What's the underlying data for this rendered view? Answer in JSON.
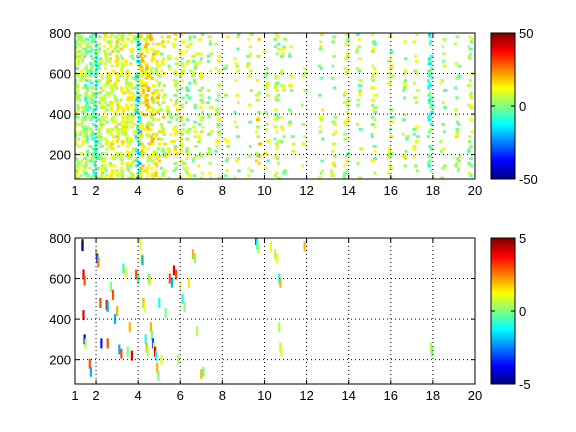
{
  "chart_data": [
    {
      "type": "heatmap",
      "title": "",
      "xlabel": "",
      "ylabel": "",
      "xlim": [
        1,
        20
      ],
      "ylim": [
        80,
        800
      ],
      "x_ticks": [
        1,
        2,
        4,
        6,
        8,
        10,
        12,
        14,
        16,
        18,
        20
      ],
      "y_ticks": [
        200,
        400,
        600,
        800
      ],
      "grid": true,
      "colormap": "jet",
      "colorbar": {
        "range": [
          -50,
          50
        ],
        "ticks": [
          -50,
          0,
          50
        ]
      },
      "bands": [
        {
          "x": 1.1,
          "density": 0.8,
          "bias": 0.05,
          "spread": 0.2
        },
        {
          "x": 1.35,
          "density": 0.7,
          "bias": 0.05,
          "spread": 0.15
        },
        {
          "x": 1.55,
          "density": 0.7,
          "bias": 0.0,
          "spread": 0.15
        },
        {
          "x": 1.8,
          "density": 0.7,
          "bias": 0.0,
          "spread": 0.15
        },
        {
          "x": 2.0,
          "density": 0.8,
          "bias": -0.05,
          "spread": 0.15
        },
        {
          "x": 2.25,
          "density": 0.75,
          "bias": 0.05,
          "spread": 0.15
        },
        {
          "x": 2.5,
          "density": 0.75,
          "bias": 0.08,
          "spread": 0.15
        },
        {
          "x": 2.75,
          "density": 0.75,
          "bias": 0.1,
          "spread": 0.15
        },
        {
          "x": 3.0,
          "density": 0.75,
          "bias": 0.1,
          "spread": 0.15
        },
        {
          "x": 3.25,
          "density": 0.75,
          "bias": 0.1,
          "spread": 0.15
        },
        {
          "x": 3.5,
          "density": 0.7,
          "bias": 0.08,
          "spread": 0.15
        },
        {
          "x": 3.75,
          "density": 0.65,
          "bias": 0.08,
          "spread": 0.15
        },
        {
          "x": 4.0,
          "density": 0.8,
          "bias": -0.1,
          "spread": 0.25
        },
        {
          "x": 4.2,
          "density": 0.75,
          "bias": 0.15,
          "spread": 0.2
        },
        {
          "x": 4.45,
          "density": 0.75,
          "bias": 0.15,
          "spread": 0.2
        },
        {
          "x": 4.7,
          "density": 0.75,
          "bias": 0.12,
          "spread": 0.2
        },
        {
          "x": 4.95,
          "density": 0.65,
          "bias": 0.1,
          "spread": 0.2
        },
        {
          "x": 5.2,
          "density": 0.55,
          "bias": 0.08,
          "spread": 0.2
        },
        {
          "x": 5.5,
          "density": 0.5,
          "bias": 0.08,
          "spread": 0.2
        },
        {
          "x": 5.8,
          "density": 0.55,
          "bias": 0.08,
          "spread": 0.2
        },
        {
          "x": 6.1,
          "density": 0.45,
          "bias": 0.08,
          "spread": 0.2
        },
        {
          "x": 6.4,
          "density": 0.4,
          "bias": 0.05,
          "spread": 0.2
        },
        {
          "x": 6.7,
          "density": 0.45,
          "bias": 0.05,
          "spread": 0.2
        },
        {
          "x": 7.0,
          "density": 0.4,
          "bias": 0.05,
          "spread": 0.2
        },
        {
          "x": 7.4,
          "density": 0.3,
          "bias": 0.05,
          "spread": 0.2
        },
        {
          "x": 7.8,
          "density": 0.25,
          "bias": 0.05,
          "spread": 0.2
        },
        {
          "x": 8.2,
          "density": 0.2,
          "bias": 0.05,
          "spread": 0.2
        },
        {
          "x": 8.7,
          "density": 0.35,
          "bias": 0.05,
          "spread": 0.2
        },
        {
          "x": 9.3,
          "density": 0.2,
          "bias": 0.05,
          "spread": 0.2
        },
        {
          "x": 9.7,
          "density": 0.3,
          "bias": 0.1,
          "spread": 0.2
        },
        {
          "x": 10.1,
          "density": 0.15,
          "bias": 0.05,
          "spread": 0.2
        },
        {
          "x": 10.6,
          "density": 0.55,
          "bias": 0.05,
          "spread": 0.2
        },
        {
          "x": 10.9,
          "density": 0.3,
          "bias": 0.05,
          "spread": 0.2
        },
        {
          "x": 11.3,
          "density": 0.2,
          "bias": 0.05,
          "spread": 0.2
        },
        {
          "x": 11.9,
          "density": 0.25,
          "bias": 0.05,
          "spread": 0.2
        },
        {
          "x": 12.7,
          "density": 0.25,
          "bias": 0.05,
          "spread": 0.2
        },
        {
          "x": 13.3,
          "density": 0.3,
          "bias": 0.05,
          "spread": 0.2
        },
        {
          "x": 13.9,
          "density": 0.5,
          "bias": 0.05,
          "spread": 0.2
        },
        {
          "x": 14.5,
          "density": 0.3,
          "bias": 0.05,
          "spread": 0.2
        },
        {
          "x": 15.2,
          "density": 0.3,
          "bias": 0.05,
          "spread": 0.2
        },
        {
          "x": 16.0,
          "density": 0.35,
          "bias": 0.05,
          "spread": 0.2
        },
        {
          "x": 16.7,
          "density": 0.3,
          "bias": 0.05,
          "spread": 0.2
        },
        {
          "x": 17.2,
          "density": 0.35,
          "bias": 0.05,
          "spread": 0.2
        },
        {
          "x": 17.9,
          "density": 0.6,
          "bias": -0.05,
          "spread": 0.2
        },
        {
          "x": 18.5,
          "density": 0.3,
          "bias": 0.05,
          "spread": 0.2
        },
        {
          "x": 19.2,
          "density": 0.35,
          "bias": 0.05,
          "spread": 0.2
        },
        {
          "x": 19.8,
          "density": 0.45,
          "bias": 0.05,
          "spread": 0.2
        }
      ]
    },
    {
      "type": "heatmap",
      "title": "",
      "xlabel": "",
      "ylabel": "",
      "xlim": [
        1,
        20
      ],
      "ylim": [
        80,
        800
      ],
      "x_ticks": [
        1,
        2,
        4,
        6,
        8,
        10,
        12,
        14,
        16,
        18,
        20
      ],
      "y_ticks": [
        200,
        400,
        600,
        800
      ],
      "grid": true,
      "colormap": "jet",
      "colorbar": {
        "range": [
          -5,
          5
        ],
        "ticks": [
          -5,
          0,
          5
        ]
      },
      "points": [
        [
          1.35,
          770,
          5
        ],
        [
          1.35,
          760,
          -5
        ],
        [
          1.4,
          620,
          4
        ],
        [
          1.45,
          590,
          3
        ],
        [
          1.4,
          420,
          4
        ],
        [
          1.45,
          300,
          -4
        ],
        [
          1.5,
          280,
          0.5
        ],
        [
          1.7,
          180,
          3
        ],
        [
          1.75,
          140,
          -2
        ],
        [
          2.0,
          720,
          2
        ],
        [
          2.05,
          700,
          -3
        ],
        [
          2.1,
          680,
          2.5
        ],
        [
          2.2,
          480,
          3
        ],
        [
          2.25,
          280,
          -3.5
        ],
        [
          2.5,
          470,
          4
        ],
        [
          2.55,
          460,
          -2
        ],
        [
          2.55,
          280,
          3
        ],
        [
          2.7,
          560,
          0
        ],
        [
          2.8,
          520,
          3
        ],
        [
          2.9,
          400,
          -2
        ],
        [
          3.0,
          440,
          2
        ],
        [
          3.1,
          250,
          -2
        ],
        [
          3.2,
          230,
          3
        ],
        [
          3.3,
          650,
          -1
        ],
        [
          3.4,
          630,
          1
        ],
        [
          3.5,
          240,
          0
        ],
        [
          3.6,
          360,
          2
        ],
        [
          3.7,
          220,
          4
        ],
        [
          3.9,
          620,
          3
        ],
        [
          4.0,
          600,
          -1
        ],
        [
          4.1,
          780,
          0.5
        ],
        [
          4.1,
          770,
          1
        ],
        [
          4.15,
          700,
          1
        ],
        [
          4.2,
          690,
          -2
        ],
        [
          4.25,
          480,
          2
        ],
        [
          4.3,
          460,
          1
        ],
        [
          4.35,
          300,
          -1
        ],
        [
          4.4,
          260,
          2
        ],
        [
          4.45,
          240,
          0.5
        ],
        [
          4.5,
          600,
          -0.5
        ],
        [
          4.55,
          590,
          1.5
        ],
        [
          4.6,
          360,
          2
        ],
        [
          4.65,
          320,
          0
        ],
        [
          4.7,
          280,
          -3
        ],
        [
          4.75,
          260,
          1
        ],
        [
          4.8,
          240,
          4
        ],
        [
          4.85,
          220,
          -1
        ],
        [
          4.9,
          160,
          2
        ],
        [
          4.95,
          120,
          0
        ],
        [
          5.0,
          480,
          -1
        ],
        [
          5.1,
          200,
          1
        ],
        [
          5.3,
          430,
          0
        ],
        [
          5.5,
          600,
          3
        ],
        [
          5.6,
          580,
          -2
        ],
        [
          5.7,
          640,
          4
        ],
        [
          5.8,
          620,
          3
        ],
        [
          5.9,
          200,
          0.5
        ],
        [
          6.0,
          560,
          1
        ],
        [
          6.1,
          500,
          -1
        ],
        [
          6.2,
          460,
          0
        ],
        [
          6.4,
          580,
          1.5
        ],
        [
          6.6,
          720,
          2
        ],
        [
          6.7,
          700,
          0
        ],
        [
          6.8,
          340,
          0.5
        ],
        [
          7.0,
          130,
          2
        ],
        [
          7.1,
          140,
          0
        ],
        [
          9.6,
          790,
          -3
        ],
        [
          9.65,
          770,
          -1
        ],
        [
          9.7,
          750,
          0.5
        ],
        [
          10.3,
          760,
          1
        ],
        [
          10.5,
          720,
          0.5
        ],
        [
          10.6,
          700,
          1
        ],
        [
          10.7,
          600,
          -1
        ],
        [
          10.75,
          580,
          2
        ],
        [
          10.7,
          360,
          0.5
        ],
        [
          10.75,
          260,
          0.5
        ],
        [
          10.8,
          240,
          1
        ],
        [
          11.9,
          760,
          2
        ],
        [
          17.9,
          260,
          0.5
        ],
        [
          17.95,
          240,
          0
        ]
      ]
    }
  ]
}
